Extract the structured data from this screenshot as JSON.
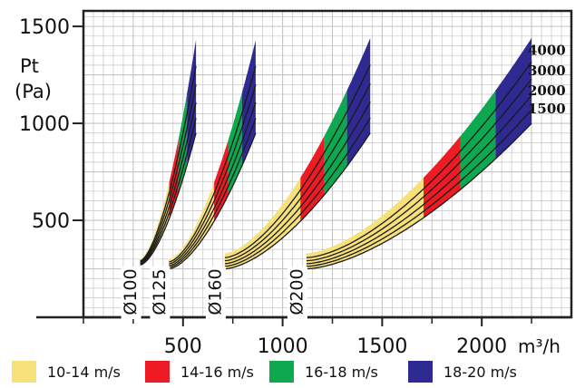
{
  "chart_data": {
    "type": "area",
    "ylabel_line1": "Pt",
    "ylabel_line2": "(Pa)",
    "x_unit": "m³/h",
    "xlim": [
      0,
      2450
    ],
    "ylim": [
      0,
      1580
    ],
    "x_ticks": [
      500,
      1000,
      1500,
      2000
    ],
    "x_tick_labels": [
      "500",
      "1000",
      "1500",
      "2000"
    ],
    "y_ticks": [
      500,
      1000,
      1500
    ],
    "y_tick_labels": [
      "500",
      "1000",
      "1500"
    ],
    "grid": true,
    "velocity_bands": [
      {
        "label": "10-14 m/s",
        "color": "#f5e07a"
      },
      {
        "label": "14-16 m/s",
        "color": "#ee1b24"
      },
      {
        "label": "16-18 m/s",
        "color": "#0da84f"
      },
      {
        "label": "18-20 m/s",
        "color": "#2e2a91"
      }
    ],
    "duct_groups": [
      {
        "label": "Ø100",
        "x_start": 285,
        "x_end": 565,
        "y_bottom_start": 270,
        "y_bottom_end": 950,
        "y_top_start": 300,
        "y_top_end": 1430
      },
      {
        "label": "Ø125",
        "x_start": 430,
        "x_end": 865,
        "y_bottom_start": 250,
        "y_bottom_end": 950,
        "y_top_start": 300,
        "y_top_end": 1430
      },
      {
        "label": "Ø160",
        "x_start": 710,
        "x_end": 1440,
        "y_bottom_start": 250,
        "y_bottom_end": 950,
        "y_top_start": 330,
        "y_top_end": 1440
      },
      {
        "label": "Ø200",
        "x_start": 1120,
        "x_end": 2250,
        "y_bottom_start": 250,
        "y_bottom_end": 1000,
        "y_top_start": 330,
        "y_top_end": 1440
      }
    ],
    "series_labels": [
      "4000",
      "3000",
      "2000",
      "1500"
    ]
  }
}
